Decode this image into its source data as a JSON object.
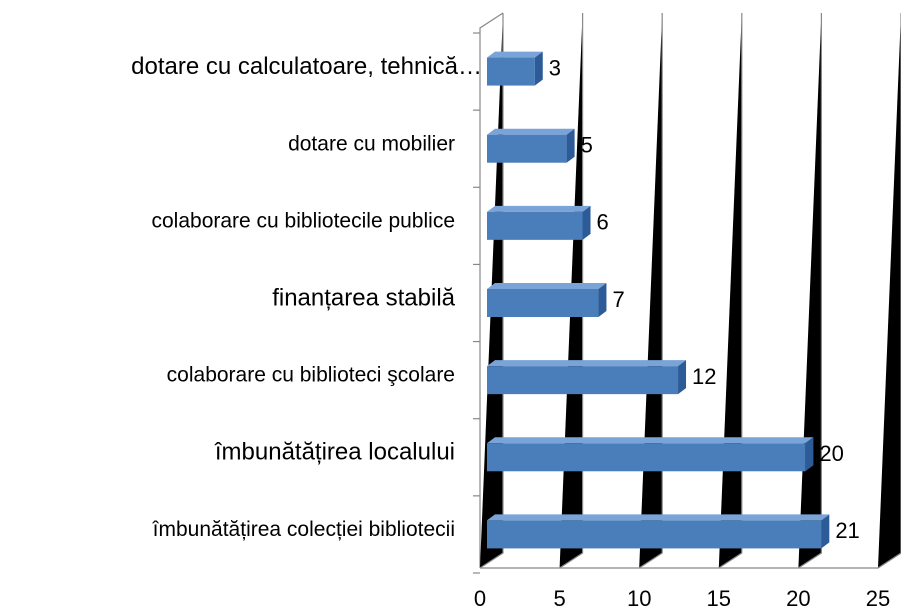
{
  "chart_data": {
    "type": "bar3d_horizontal",
    "categories": [
      "dotare  cu calculatoare, tehnică…",
      "dotare  cu mobilier",
      "colaborare cu bibliotecile publice",
      "finanțarea stabilă",
      "colaborare cu  biblioteci şcolare",
      "îmbunătățirea  localului",
      "îmbunătățirea  colecției   bibliotecii"
    ],
    "values": [
      3,
      5,
      6,
      7,
      12,
      20,
      21
    ],
    "color": "#4a7ebb",
    "xlim": [
      0,
      25
    ],
    "xticks": [
      0,
      5,
      10,
      15,
      20,
      25
    ],
    "grid": true
  }
}
